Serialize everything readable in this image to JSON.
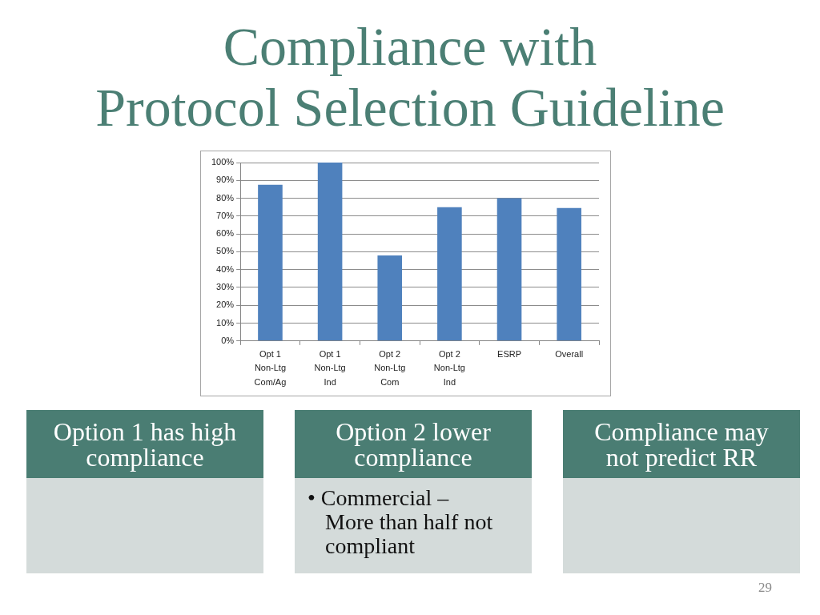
{
  "chart_data": [
    {
      "type": "bar",
      "title": "Compliance with\nProtocol Selection Guideline",
      "categories": [
        "Opt 1\nNon-Ltg\nCom/Ag",
        "Opt 1\nNon-Ltg\nInd",
        "Opt 2\nNon-Ltg\nCom",
        "Opt 2\nNon-Ltg\nInd",
        "ESRP",
        "Overall"
      ],
      "values": [
        87.5,
        100,
        48,
        75,
        80,
        74.5
      ],
      "color": "#4f81bd",
      "ylim": [
        0,
        100
      ],
      "yticks": [
        {
          "value": 0,
          "label": "0%"
        },
        {
          "value": 10,
          "label": "10%"
        },
        {
          "value": 20,
          "label": "20%"
        },
        {
          "value": 30,
          "label": "30%"
        },
        {
          "value": 40,
          "label": "40%"
        },
        {
          "value": 50,
          "label": "50%"
        },
        {
          "value": 60,
          "label": "60%"
        },
        {
          "value": 70,
          "label": "70%"
        },
        {
          "value": 80,
          "label": "80%"
        },
        {
          "value": 90,
          "label": "90%"
        },
        {
          "value": 100,
          "label": "100%"
        }
      ],
      "grid": "y",
      "annotations": [
        "29"
      ]
    },
    {
      "type": "other",
      "title": "Option 1 has high compliance"
    },
    {
      "type": "other",
      "title": "Option 2 lower compliance",
      "annotations": [
        "• Commercial – More than half not compliant"
      ]
    },
    {
      "type": "other",
      "title": "Compliance may not predict RR"
    }
  ]
}
